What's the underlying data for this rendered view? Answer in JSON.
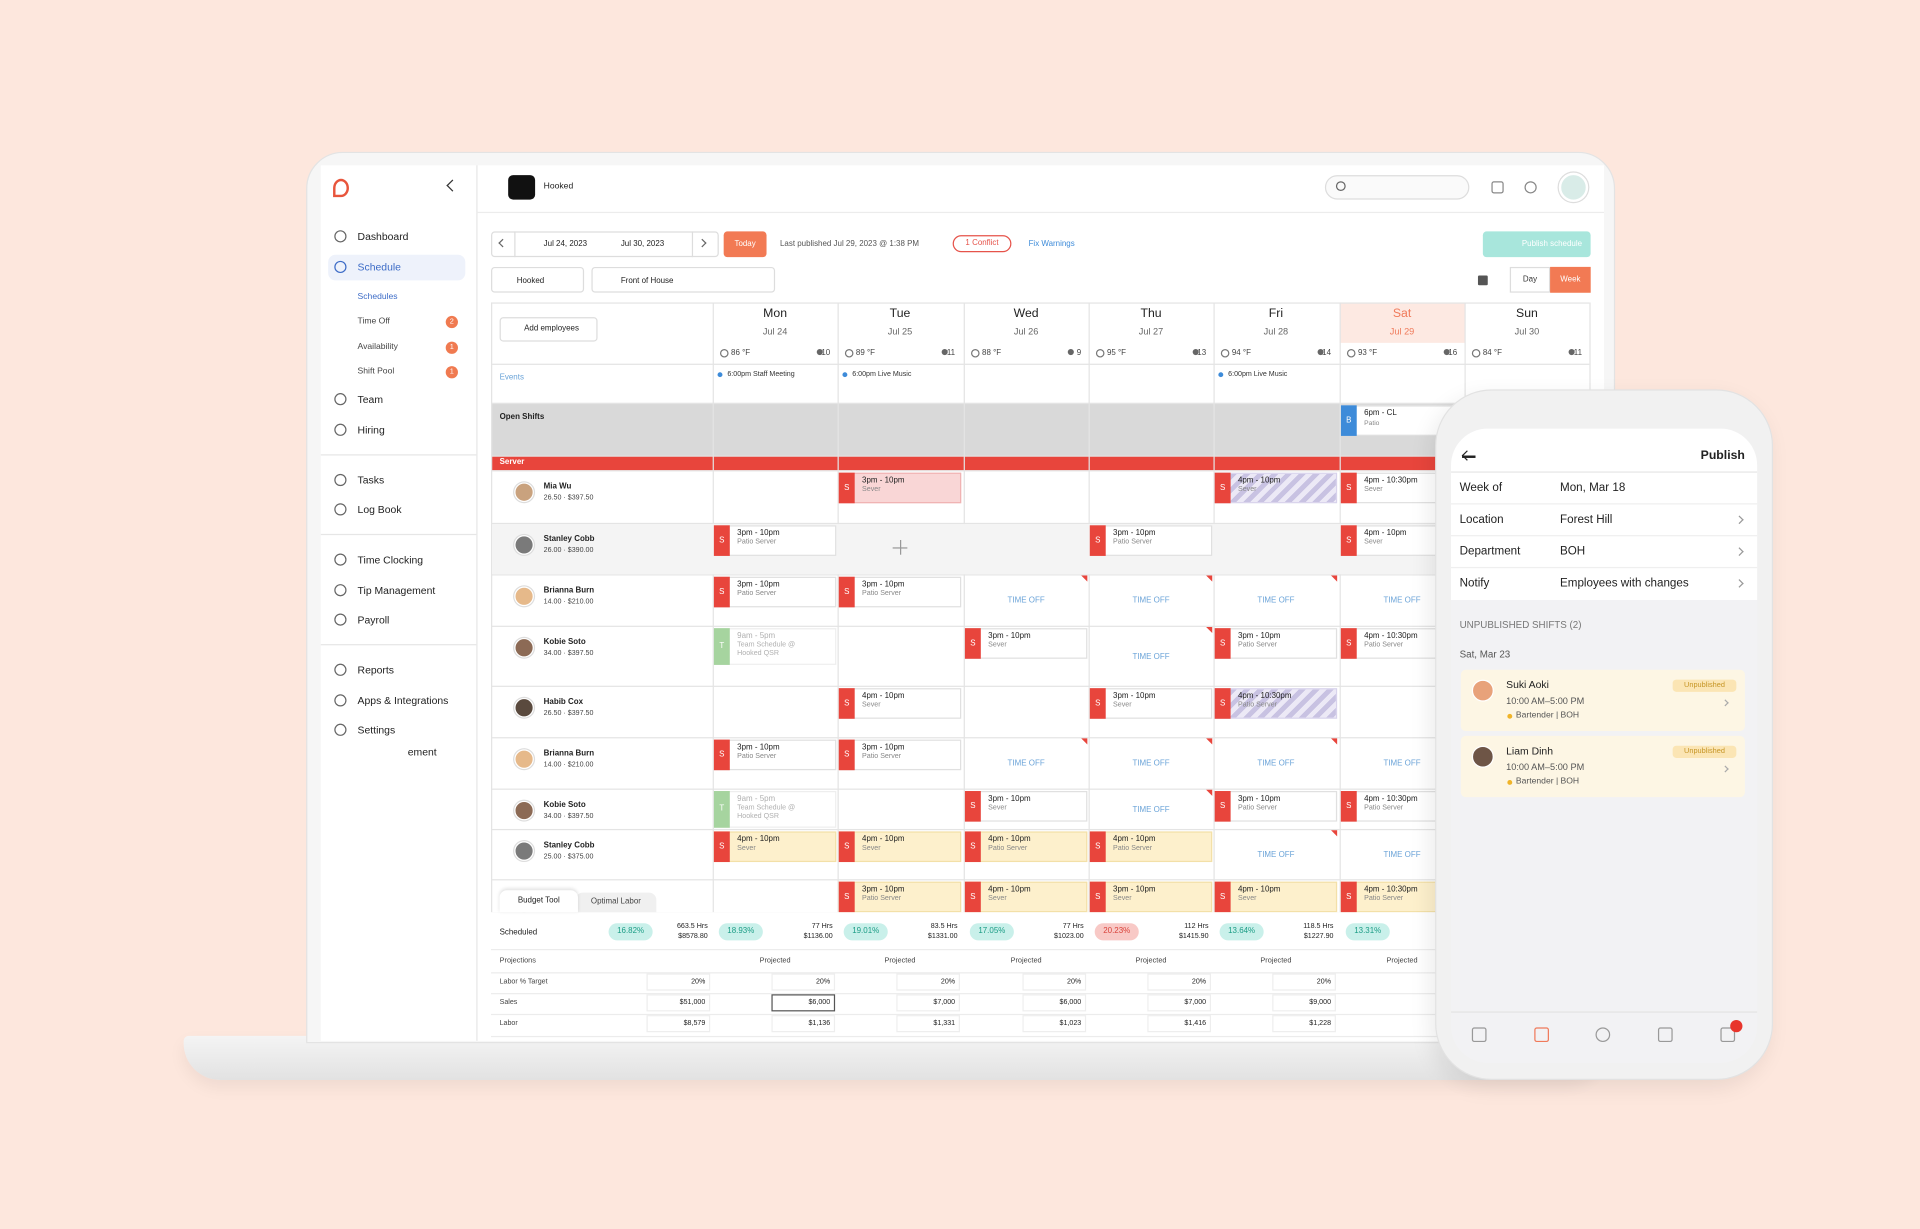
{
  "header": {
    "business": "Hooked"
  },
  "sidebar": {
    "groups": [
      {
        "items": [
          {
            "label": "Dashboard",
            "kind": "main"
          },
          {
            "label": "Schedule",
            "kind": "main",
            "active": true
          },
          {
            "label": "Schedules",
            "kind": "sub",
            "active": true
          },
          {
            "label": "Time Off",
            "kind": "sub",
            "badge": 2
          },
          {
            "label": "Availability",
            "kind": "sub",
            "badge": 1
          },
          {
            "label": "Shift Pool",
            "kind": "sub",
            "badge": 1
          },
          {
            "label": "Team",
            "kind": "main"
          },
          {
            "label": "Hiring",
            "kind": "main"
          }
        ]
      },
      {
        "items": [
          {
            "label": "Tasks",
            "kind": "main"
          },
          {
            "label": "Log Book",
            "kind": "main"
          }
        ]
      },
      {
        "items": [
          {
            "label": "Time Clocking",
            "kind": "main"
          },
          {
            "label": "Tip Management",
            "kind": "main"
          },
          {
            "label": "Payroll",
            "kind": "main"
          }
        ]
      },
      {
        "items": [
          {
            "label": "Reports",
            "kind": "main"
          },
          {
            "label": "Apps & Integrations",
            "kind": "main"
          },
          {
            "label": "Settings",
            "kind": "main"
          },
          {
            "label": "ement",
            "kind": "clipped"
          }
        ]
      }
    ]
  },
  "toolbar": {
    "date_start": "Jul 24, 2023",
    "date_end": "Jul 30, 2023",
    "today": "Today",
    "last_published": "Last published Jul 29, 2023 @ 1:38 PM",
    "conflicts": "1 Conflict",
    "fix_warnings": "Fix Warnings",
    "publish": "Publish schedule",
    "location": "Hooked",
    "department": "Front of House",
    "views": [
      "Day",
      "Week"
    ],
    "active_view": 1
  },
  "schedule": {
    "add_employees": "Add employees",
    "highlight_day": 5,
    "days": [
      {
        "name": "Mon",
        "date": "Jul 24",
        "temp": "86 °F",
        "staff": "10"
      },
      {
        "name": "Tue",
        "date": "Jul 25",
        "temp": "89 °F",
        "staff": "11"
      },
      {
        "name": "Wed",
        "date": "Jul 26",
        "temp": "88 °F",
        "staff": "9"
      },
      {
        "name": "Thu",
        "date": "Jul 27",
        "temp": "95 °F",
        "staff": "13"
      },
      {
        "name": "Fri",
        "date": "Jul 28",
        "temp": "94 °F",
        "staff": "14"
      },
      {
        "name": "Sat",
        "date": "Jul 29",
        "temp": "93 °F",
        "staff": "16"
      },
      {
        "name": "Sun",
        "date": "Jul 30",
        "temp": "84 °F",
        "staff": "11"
      }
    ],
    "events_label": "Events",
    "events": [
      "6:00pm Staff Meeting",
      "6:00pm Live Music",
      null,
      null,
      "6:00pm Live Music",
      null,
      null
    ],
    "open_shifts_label": "Open Shifts",
    "open_shifts": [
      null,
      null,
      null,
      null,
      null,
      {
        "time": "6pm - CL",
        "role": "Patio",
        "badge": "B"
      },
      null
    ],
    "section": "Server",
    "rows": [
      {
        "name": "Mia Wu",
        "pay": "26.50 · $397.50",
        "cells": [
          null,
          {
            "time": "3pm - 10pm",
            "role": "Sever",
            "badge": "S",
            "style": "conflict"
          },
          null,
          null,
          {
            "time": "4pm - 10pm",
            "role": "Sever",
            "badge": "S",
            "style": "striped"
          },
          {
            "time": "4pm - 10:30pm",
            "role": "Sever",
            "badge": "S",
            "style": "plain"
          },
          null
        ]
      },
      {
        "name": "Stanley Cobb",
        "pay": "26.00 · $390.00",
        "cells": [
          {
            "time": "3pm - 10pm",
            "role": "Patio Server",
            "badge": "S",
            "style": "plain"
          },
          {
            "style": "add"
          },
          null,
          {
            "time": "3pm - 10pm",
            "role": "Patio Server",
            "badge": "S",
            "style": "plain"
          },
          null,
          {
            "time": "4pm - 10pm",
            "role": "Sever",
            "badge": "S",
            "style": "plain"
          },
          null
        ]
      },
      {
        "name": "Brianna Burn",
        "pay": "14.00 · $210.00",
        "cells": [
          {
            "time": "3pm - 10pm",
            "role": "Patio Server",
            "badge": "S",
            "style": "plain"
          },
          {
            "time": "3pm - 10pm",
            "role": "Patio Server",
            "badge": "S",
            "style": "plain"
          },
          {
            "style": "time_off",
            "label": "TIME OFF"
          },
          {
            "style": "time_off",
            "label": "TIME OFF"
          },
          {
            "style": "time_off",
            "label": "TIME OFF"
          },
          {
            "style": "time_off",
            "label": "TIME OFF"
          },
          null
        ]
      },
      {
        "name": "Kobie Soto",
        "pay": "34.00 · $397.50",
        "cells": [
          {
            "time": "9am - 5pm",
            "role": "Team Schedule @ Hooked QSR",
            "badge": "T",
            "style": "team"
          },
          null,
          {
            "time": "3pm - 10pm",
            "role": "Sever",
            "badge": "S",
            "style": "plain"
          },
          {
            "style": "time_off",
            "label": "TIME OFF"
          },
          {
            "time": "3pm - 10pm",
            "role": "Patio Server",
            "badge": "S",
            "style": "plain"
          },
          {
            "time": "4pm - 10:30pm",
            "role": "Patio Server",
            "badge": "S",
            "style": "plain"
          },
          null
        ]
      },
      {
        "name": "Habib Cox",
        "pay": "26.50 · $397.50",
        "cells": [
          null,
          {
            "time": "4pm - 10pm",
            "role": "Sever",
            "badge": "S",
            "style": "plain"
          },
          null,
          {
            "time": "3pm - 10pm",
            "role": "Sever",
            "badge": "S",
            "style": "plain"
          },
          {
            "time": "4pm - 10:30pm",
            "role": "Patio Server",
            "badge": "S",
            "style": "striped"
          },
          null,
          null
        ]
      },
      {
        "name": "Brianna Burn",
        "pay": "14.00 · $210.00",
        "cells": [
          {
            "time": "3pm - 10pm",
            "role": "Patio Server",
            "badge": "S",
            "style": "plain"
          },
          {
            "time": "3pm - 10pm",
            "role": "Patio Server",
            "badge": "S",
            "style": "plain"
          },
          {
            "style": "time_off",
            "label": "TIME OFF"
          },
          {
            "style": "time_off",
            "label": "TIME OFF"
          },
          {
            "style": "time_off",
            "label": "TIME OFF"
          },
          {
            "style": "time_off",
            "label": "TIME OFF"
          },
          null
        ]
      },
      {
        "name": "Kobie Soto",
        "pay": "34.00 · $397.50",
        "cells": [
          {
            "time": "9am - 5pm",
            "role": "Team Schedule @ Hooked QSR",
            "badge": "T",
            "style": "team"
          },
          null,
          {
            "time": "3pm - 10pm",
            "role": "Sever",
            "badge": "S",
            "style": "plain"
          },
          {
            "style": "time_off",
            "label": "TIME OFF"
          },
          {
            "time": "3pm - 10pm",
            "role": "Patio Server",
            "badge": "S",
            "style": "plain"
          },
          {
            "time": "4pm - 10:30pm",
            "role": "Patio Server",
            "badge": "S",
            "style": "plain"
          },
          null
        ]
      },
      {
        "name": "Stanley Cobb",
        "pay": "25.00 · $375.00",
        "cells": [
          {
            "time": "4pm - 10pm",
            "role": "Sever",
            "badge": "S",
            "style": "pending"
          },
          {
            "time": "4pm - 10pm",
            "role": "Sever",
            "badge": "S",
            "style": "pending"
          },
          {
            "time": "4pm - 10pm",
            "role": "Patio Server",
            "badge": "S",
            "style": "pending"
          },
          {
            "time": "4pm - 10pm",
            "role": "Patio Server",
            "badge": "S",
            "style": "pending"
          },
          {
            "style": "time_off",
            "label": "TIME OFF"
          },
          {
            "style": "time_off",
            "label": "TIME OFF"
          },
          null
        ]
      },
      {
        "name": null,
        "pay": null,
        "cells": [
          null,
          {
            "time": "3pm - 10pm",
            "role": "Patio Server",
            "badge": "S",
            "style": "pending"
          },
          {
            "time": "4pm - 10pm",
            "role": "Sever",
            "badge": "S",
            "style": "pending"
          },
          {
            "time": "3pm - 10pm",
            "role": "Sever",
            "badge": "S",
            "style": "pending"
          },
          {
            "time": "4pm - 10pm",
            "role": "Sever",
            "badge": "S",
            "style": "pending"
          },
          {
            "time": "4pm - 10:30pm",
            "role": "Patio Server",
            "badge": "S",
            "style": "pending"
          },
          null
        ]
      }
    ]
  },
  "budget": {
    "tabs": [
      "Budget Tool",
      "Optimal Labor"
    ],
    "scheduled_label": "Scheduled",
    "scheduled": [
      {
        "pct": "16.82%",
        "hrs": "663.5 Hrs",
        "cost": "$8578.80",
        "level": "good"
      },
      {
        "pct": "18.93%",
        "hrs": "77 Hrs",
        "cost": "$1136.00",
        "level": "good"
      },
      {
        "pct": "19.01%",
        "hrs": "83.5 Hrs",
        "cost": "$1331.00",
        "level": "good"
      },
      {
        "pct": "17.05%",
        "hrs": "77 Hrs",
        "cost": "$1023.00",
        "level": "good"
      },
      {
        "pct": "20.23%",
        "hrs": "112 Hrs",
        "cost": "$1415.90",
        "level": "high"
      },
      {
        "pct": "13.64%",
        "hrs": "118.5 Hrs",
        "cost": "$1227.90",
        "level": "good"
      },
      {
        "pct": "13.31%",
        "hrs": null,
        "cost": null,
        "level": "good"
      }
    ],
    "projections_label": "Projections",
    "projected_label": "Projected",
    "rows": [
      {
        "label": "Labor % Target",
        "values": [
          "20%",
          "20%",
          "20%",
          "20%",
          "20%",
          "20%",
          null
        ]
      },
      {
        "label": "Sales",
        "values": [
          "$51,000",
          "$6,000",
          "$7,000",
          "$6,000",
          "$7,000",
          "$9,000",
          null
        ]
      },
      {
        "label": "Labor",
        "values": [
          "$8,579",
          "$1,136",
          "$1,331",
          "$1,023",
          "$1,416",
          "$1,228",
          null
        ]
      }
    ]
  },
  "phone": {
    "title": "Publish",
    "fields": [
      {
        "label": "Week of",
        "value": "Mon, Mar 18"
      },
      {
        "label": "Location",
        "value": "Forest Hill"
      },
      {
        "label": "Department",
        "value": "BOH"
      },
      {
        "label": "Notify",
        "value": "Employees with changes"
      }
    ],
    "section": "UNPUBLISHED SHIFTS (2)",
    "date": "Sat, Mar 23",
    "shifts": [
      {
        "name": "Suki Aoki",
        "status": "Unpublished",
        "time": "10:00 AM–5:00 PM",
        "role": "Bartender | BOH"
      },
      {
        "name": "Liam Dinh",
        "status": "Unpublished",
        "time": "10:00 AM–5:00 PM",
        "role": "Bartender | BOH"
      }
    ]
  }
}
